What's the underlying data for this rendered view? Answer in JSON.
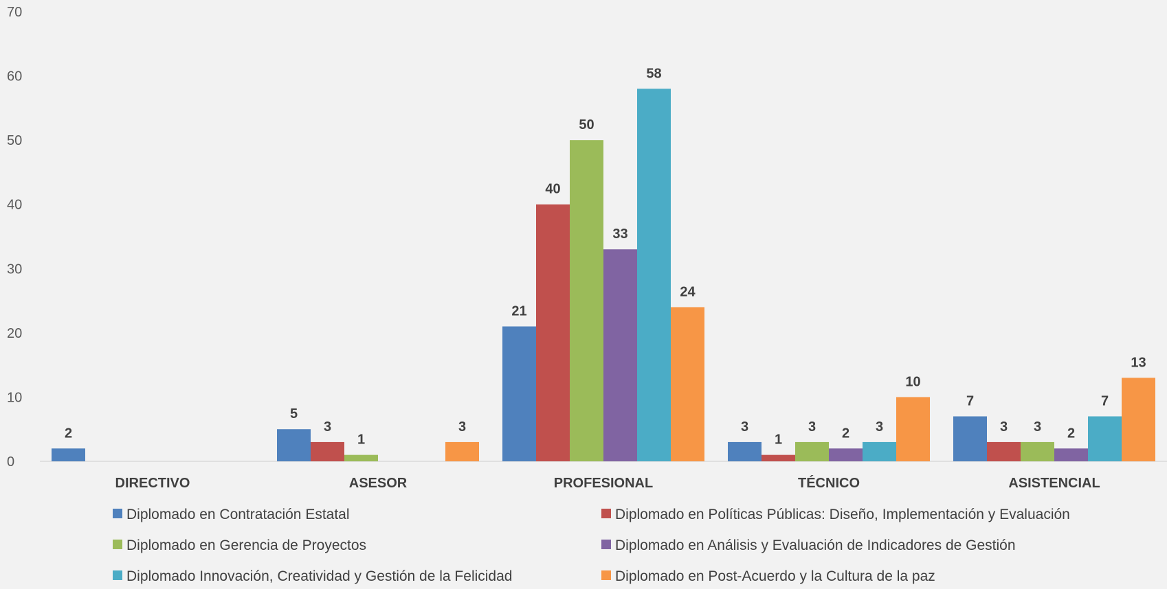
{
  "chart_data": {
    "type": "bar",
    "categories": [
      "DIRECTIVO",
      "ASESOR",
      "PROFESIONAL",
      "TÉCNICO",
      "ASISTENCIAL"
    ],
    "ylim": [
      0,
      70
    ],
    "yticks": [
      0,
      10,
      20,
      30,
      40,
      50,
      60,
      70
    ],
    "grid": false,
    "legend_position": "bottom",
    "series": [
      {
        "name": "Diplomado en Contratación Estatal",
        "color": "#4f81bd",
        "values": [
          2,
          5,
          21,
          3,
          7
        ]
      },
      {
        "name": "Diplomado en Políticas Públicas: Diseño, Implementación y Evaluación",
        "color": "#c0504d",
        "values": [
          0,
          3,
          40,
          1,
          3
        ]
      },
      {
        "name": "Diplomado en Gerencia de Proyectos",
        "color": "#9bbb59",
        "values": [
          0,
          1,
          50,
          3,
          3
        ]
      },
      {
        "name": "Diplomado en Análisis y Evaluación de Indicadores de Gestión",
        "color": "#8064a2",
        "values": [
          0,
          0,
          33,
          2,
          2
        ]
      },
      {
        "name": "Diplomado Innovación, Creatividad y Gestión de la Felicidad",
        "color": "#4bacc6",
        "values": [
          0,
          0,
          58,
          3,
          7
        ]
      },
      {
        "name": "Diplomado en Post-Acuerdo y la Cultura de la paz",
        "color": "#f79646",
        "values": [
          0,
          3,
          24,
          10,
          13
        ]
      }
    ]
  }
}
